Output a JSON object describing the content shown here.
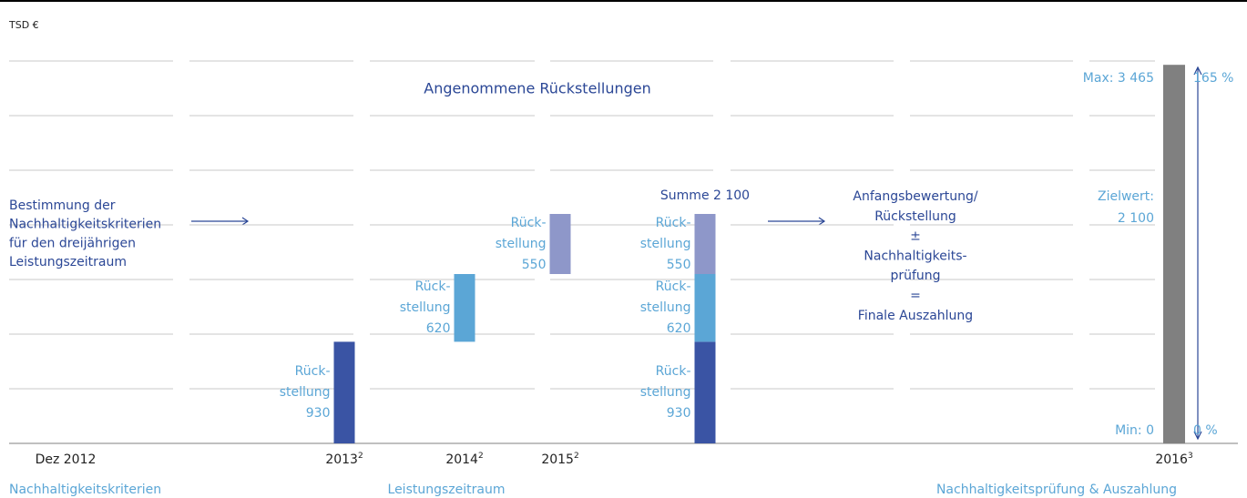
{
  "chart_data": {
    "type": "bar",
    "unit_label": "TSD €",
    "title": "Angenommene Rückstellungen",
    "ylim": [
      0,
      3500
    ],
    "yticks": [
      0,
      500,
      1000,
      1500,
      2000,
      2500,
      3000,
      3500
    ],
    "grid": true,
    "provision_label": [
      "Rück-",
      "stellung"
    ],
    "provisions": [
      {
        "value": 930,
        "color": "#3a54a4"
      },
      {
        "value": 620,
        "color": "#5ba6d6"
      },
      {
        "value": 550,
        "color": "#8e97c9"
      }
    ],
    "columns": [
      {
        "category": "Dez 2012",
        "shown": []
      },
      {
        "category": "2013",
        "note": "2",
        "shown": [
          0
        ]
      },
      {
        "category": "2014",
        "note": "2",
        "shown": [
          1
        ]
      },
      {
        "category": "2015",
        "note": "2",
        "shown": [
          2
        ]
      },
      {
        "category": null,
        "shown": [
          0,
          1,
          2
        ]
      },
      {
        "category": "2016",
        "note": "3",
        "shown": []
      }
    ],
    "sum_label": "Summe 2 100",
    "sum_value": 2100,
    "final": {
      "color": "#808080",
      "max_label": "Max: 3 465",
      "max": 3465,
      "min_label": "Min: 0",
      "min": 0,
      "target_label": "Zielwert:",
      "target": 2100,
      "target_value_label": "2 100",
      "pct_max": 165,
      "pct_max_label": "165 %",
      "pct_min": 0,
      "pct_min_label": "0 %"
    },
    "left_text": [
      "Bestimmung der",
      "Nachhaltigkeitskriterien",
      "für den dreijährigen",
      "Leistungszeitraum"
    ],
    "middle_text": [
      "Anfangsbewertung/",
      "Rückstellung",
      "±",
      "Nachhaltigkeits-",
      "prüfung",
      "=",
      "Finale Auszahlung"
    ],
    "phases": [
      "Nachhaltigkeitskriterien",
      "Leistungszeitraum",
      "Nachhaltigkeitsprüfung & Auszahlung"
    ]
  }
}
